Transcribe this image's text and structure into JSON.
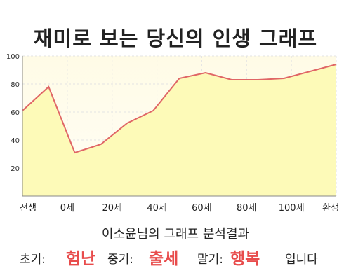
{
  "title": "재미로 보는 당신의 인생 그래프",
  "chart_data": {
    "type": "area",
    "title": "재미로 보는 당신의 인생 그래프",
    "x_tick_labels": [
      "전생",
      "0세",
      "20세",
      "40세",
      "60세",
      "80세",
      "100세",
      "환생"
    ],
    "y_ticks": [
      20,
      40,
      60,
      80,
      100
    ],
    "ylim": [
      0,
      100
    ],
    "grid": true,
    "fill_color": "#fdfab8",
    "line_color": "#e06666",
    "x": [
      "전생",
      "0세",
      "10세",
      "20세",
      "30세",
      "40세",
      "50세",
      "60세",
      "70세",
      "80세",
      "90세",
      "100세",
      "환생"
    ],
    "values": [
      61,
      78,
      31,
      37,
      52,
      61,
      84,
      88,
      83,
      83,
      84,
      89,
      94
    ]
  },
  "summary": {
    "heading": "이소윤님의 그래프 분석결과",
    "early_label": "초기:",
    "early_value": "험난",
    "middle_label": "중기:",
    "middle_value": "출세",
    "late_label": "말기:",
    "late_value": "행복",
    "ending": "입니다"
  }
}
